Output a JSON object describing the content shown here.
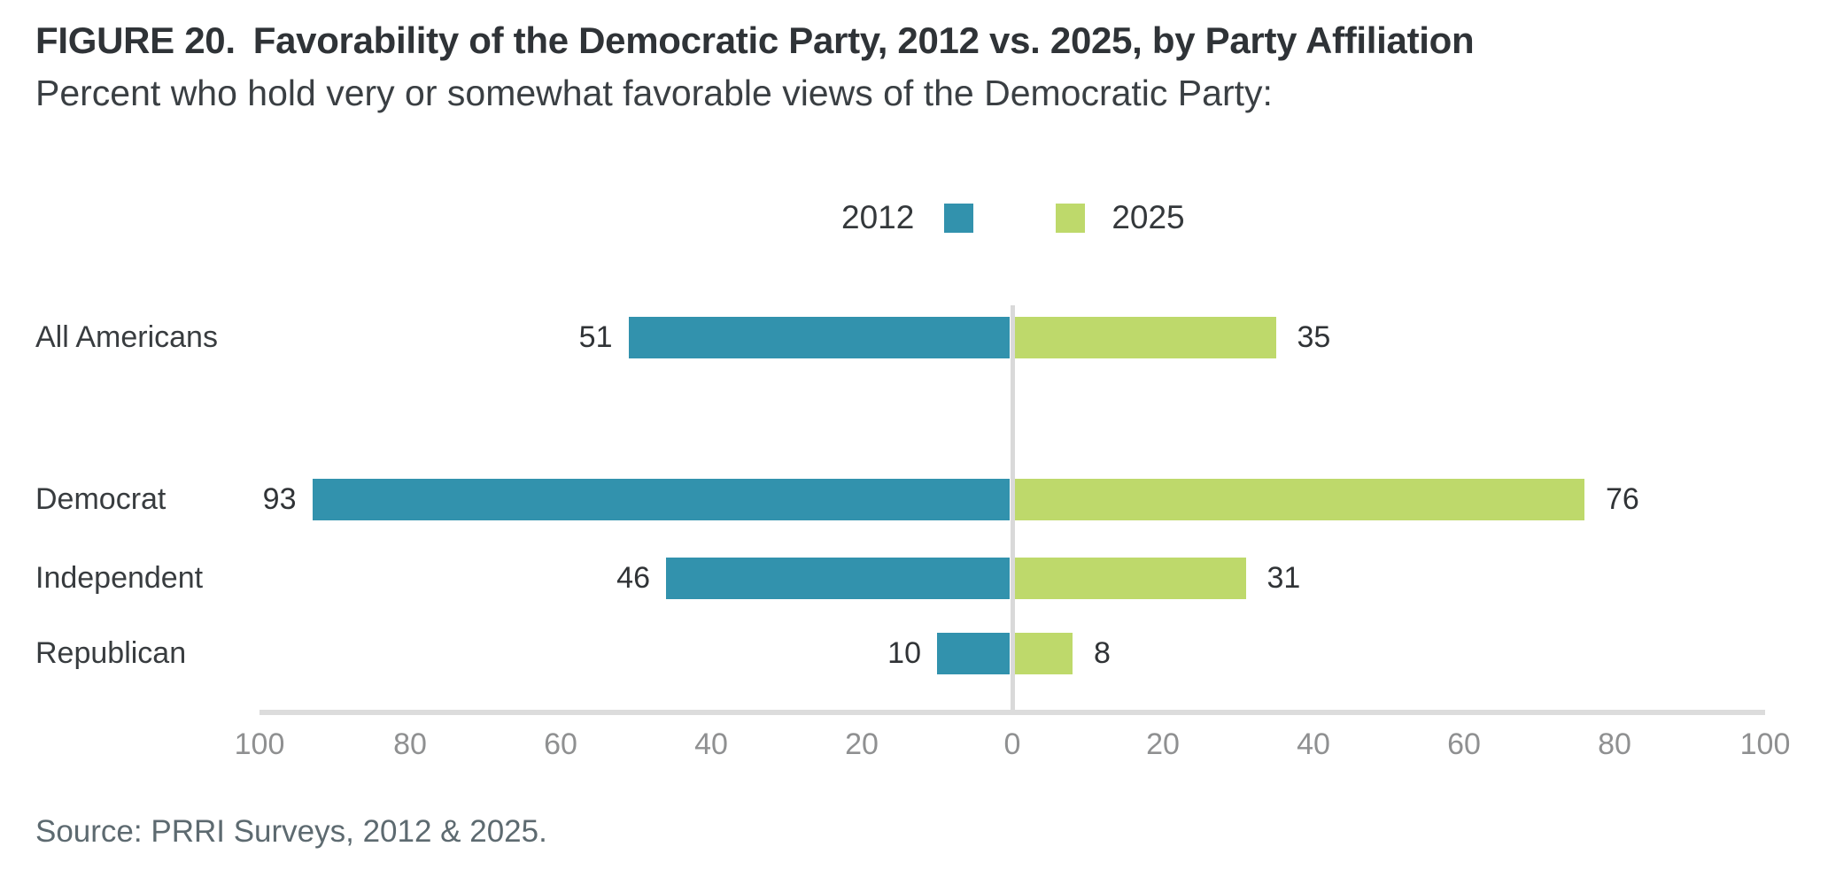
{
  "header": {
    "figure_label": "FIGURE 20.",
    "title": "Favorability of the Democratic Party, 2012 vs. 2025, by Party Affiliation",
    "subtitle": "Percent who hold very or somewhat favorable views of the Democratic Party:"
  },
  "legend": {
    "items": [
      {
        "label": "2012",
        "color": "#3292ad"
      },
      {
        "label": "2025",
        "color": "#bed96b"
      }
    ]
  },
  "chart_data": {
    "type": "bar",
    "variant": "diverging_horizontal",
    "title": "Favorability of the Democratic Party, 2012 vs. 2025, by Party Affiliation",
    "categories": [
      "All Americans",
      "Democrat",
      "Independent",
      "Republican"
    ],
    "series": [
      {
        "name": "2012",
        "side": "left",
        "color": "#3292ad",
        "values": [
          51,
          93,
          46,
          10
        ]
      },
      {
        "name": "2025",
        "side": "right",
        "color": "#bed96b",
        "values": [
          35,
          76,
          31,
          8
        ]
      }
    ],
    "axis": {
      "tick_values": [
        -100,
        -80,
        -60,
        -40,
        -20,
        0,
        20,
        40,
        60,
        80,
        100
      ],
      "tick_labels": [
        "100",
        "80",
        "60",
        "40",
        "20",
        "0",
        "20",
        "40",
        "60",
        "80",
        "100"
      ],
      "range": [
        -100,
        100
      ],
      "grid": false,
      "zero_line": true
    },
    "legend_position": "top-center",
    "value_labels": "outside-ends"
  },
  "footer": {
    "source": "Source: PRRI Surveys, 2012 & 2025."
  },
  "colors": {
    "series_2012": "#3292ad",
    "series_2025": "#bed96b",
    "axis_line": "#dcdcdc",
    "zero_line": "#d9d9d9",
    "tick_text": "#8f9091",
    "title_text": "#2f3337",
    "source_text": "#5d6a70"
  }
}
